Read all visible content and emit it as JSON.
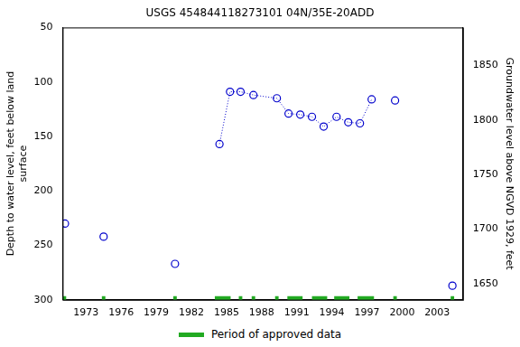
{
  "chart_data": {
    "type": "scatter",
    "title": "USGS 454844118273101 04N/35E-20ADD",
    "ylabel": [
      "Depth to water level, feet below land",
      "surface"
    ],
    "y2label": "Groundwater level above NGVD 1929, feet",
    "xlim": [
      1971,
      2005.2
    ],
    "xticks": [
      1973,
      1976,
      1979,
      1982,
      1985,
      1988,
      1991,
      1994,
      1997,
      2000,
      2003
    ],
    "ylim": [
      50,
      300
    ],
    "yticks": [
      50,
      100,
      150,
      200,
      250,
      300
    ],
    "y2lim": [
      1635,
      1885
    ],
    "y2ticks": [
      1650,
      1700,
      1750,
      1800,
      1850
    ],
    "grid": false,
    "series": [
      {
        "type": "scatter",
        "marker": "circle",
        "color": "#0000cc",
        "x": [
          1971.2,
          1974.5,
          1980.6,
          1984.4,
          1985.3,
          1986.2,
          1987.3,
          1989.3,
          1990.3,
          1991.3,
          1992.3,
          1993.3,
          1994.4,
          1995.4,
          1996.4,
          1997.4,
          1999.4,
          2004.3
        ],
        "values": [
          230,
          242,
          267,
          157,
          109,
          109,
          112,
          115,
          129,
          130,
          132,
          141,
          132,
          137,
          138,
          116,
          117,
          287
        ]
      },
      {
        "type": "line",
        "line_style": "dotted",
        "color": "#0000cc",
        "x": [
          1984.4,
          1985.3,
          1986.2,
          1987.3,
          1989.3,
          1990.3,
          1991.3,
          1992.3,
          1993.3,
          1994.4,
          1995.4,
          1996.4,
          1997.4
        ],
        "values": [
          157,
          109,
          109,
          112,
          115,
          129,
          130,
          132,
          141,
          132,
          137,
          138,
          116
        ]
      }
    ],
    "approved_periods": {
      "name": "Period of approved data",
      "color": "#22aa22",
      "ranges": [
        [
          1971.0,
          1971.3
        ],
        [
          1974.35,
          1974.65
        ],
        [
          1980.45,
          1980.75
        ],
        [
          1984.0,
          1985.35
        ],
        [
          1986.05,
          1986.35
        ],
        [
          1987.15,
          1987.45
        ],
        [
          1989.15,
          1989.45
        ],
        [
          1990.2,
          1991.5
        ],
        [
          1992.3,
          1993.6
        ],
        [
          1994.2,
          1995.5
        ],
        [
          1996.2,
          1997.6
        ],
        [
          1999.25,
          1999.55
        ],
        [
          2004.15,
          2004.45
        ]
      ]
    }
  }
}
